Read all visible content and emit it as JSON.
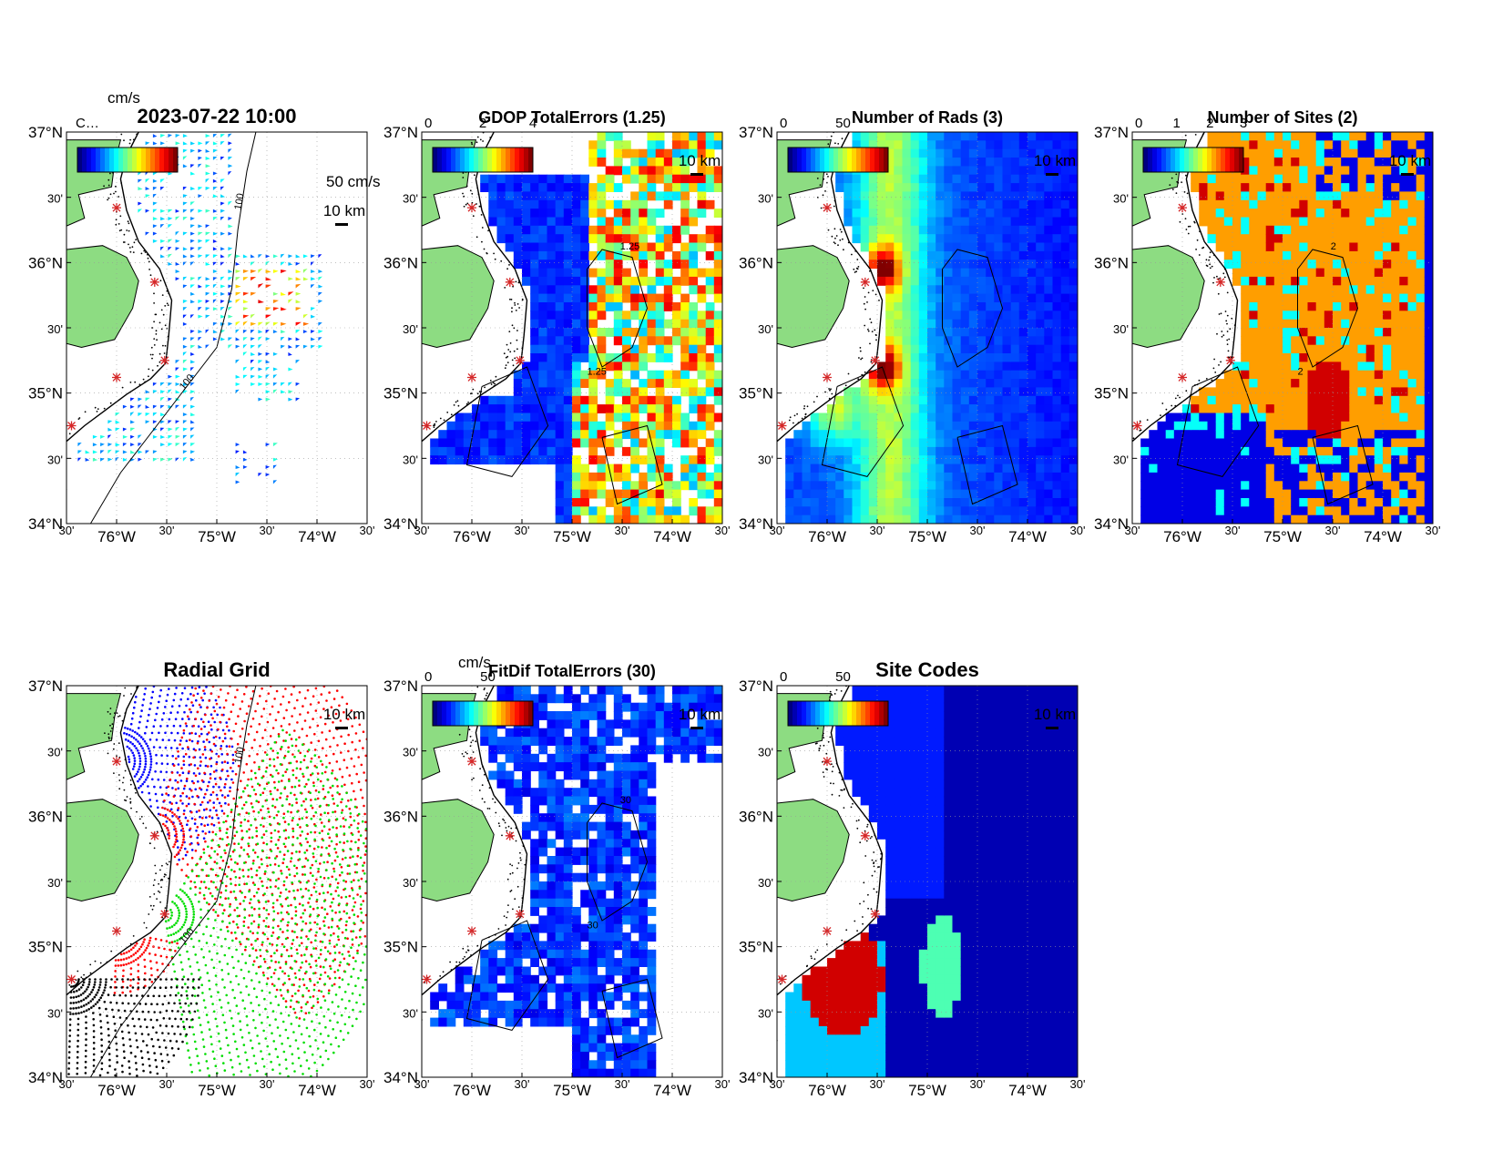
{
  "panels": [
    {
      "key": "vectors",
      "title": "2023-07-22 10:00",
      "type": "vectors",
      "axis_labels": [
        "cm/s"
      ],
      "scale_label": "50 cm/s",
      "km_label": "10 km",
      "colorbar_ticks": [],
      "overlap_label": "C…"
    },
    {
      "key": "gdop",
      "title": "GDOP TotalErrors (1.25)",
      "type": "field",
      "field": "gdop",
      "contour_value": "1.25",
      "km_label": "10 km",
      "colorbar_ticks": [
        "0",
        "2",
        "4"
      ]
    },
    {
      "key": "rads",
      "title": "Number of Rads (3)",
      "type": "field",
      "field": "rads",
      "km_label": "10 km",
      "colorbar_ticks": [
        "0",
        "50"
      ]
    },
    {
      "key": "sites",
      "title": "Number of Sites (2)",
      "type": "field",
      "field": "sites",
      "contour_value": "2",
      "km_label": "10 km",
      "colorbar_ticks": [
        "0",
        "1",
        "2",
        "3"
      ]
    },
    {
      "key": "radial",
      "title": "Radial Grid",
      "type": "radial",
      "km_label": "10 km",
      "colorbar_ticks": []
    },
    {
      "key": "fitdif",
      "title": "FitDif TotalErrors (30)",
      "type": "field",
      "field": "fitdif",
      "contour_value": "30",
      "axis_labels": [
        "cm/s"
      ],
      "km_label": "10 km",
      "colorbar_ticks": [
        "0",
        "50"
      ]
    },
    {
      "key": "codes",
      "title": "Site Codes",
      "type": "field",
      "field": "codes",
      "km_label": "10 km",
      "colorbar_ticks": [
        "0",
        "50"
      ]
    }
  ],
  "axes": {
    "lat_labels": [
      "37°N",
      "30'",
      "36°N",
      "30'",
      "35°N",
      "30'",
      "34°N"
    ],
    "lon_labels": [
      "30'",
      "76°W",
      "30'",
      "75°W",
      "30'",
      "74°W",
      "30'"
    ],
    "lon_range": [
      -76.5,
      -73.5
    ],
    "lat_range": [
      34.0,
      37.0
    ],
    "isobath_label": "100"
  },
  "colors": {
    "land": "#8ddc82",
    "site_marker": "#d62728",
    "radial_sites": [
      "#0000ff",
      "#ff0000",
      "#00dd00",
      "#000000"
    ]
  },
  "sites": [
    {
      "lon": -76.0,
      "lat": 36.42
    },
    {
      "lon": -75.62,
      "lat": 35.85
    },
    {
      "lon": -75.52,
      "lat": 35.25
    },
    {
      "lon": -76.0,
      "lat": 35.12
    },
    {
      "lon": -76.45,
      "lat": 34.75
    }
  ]
}
